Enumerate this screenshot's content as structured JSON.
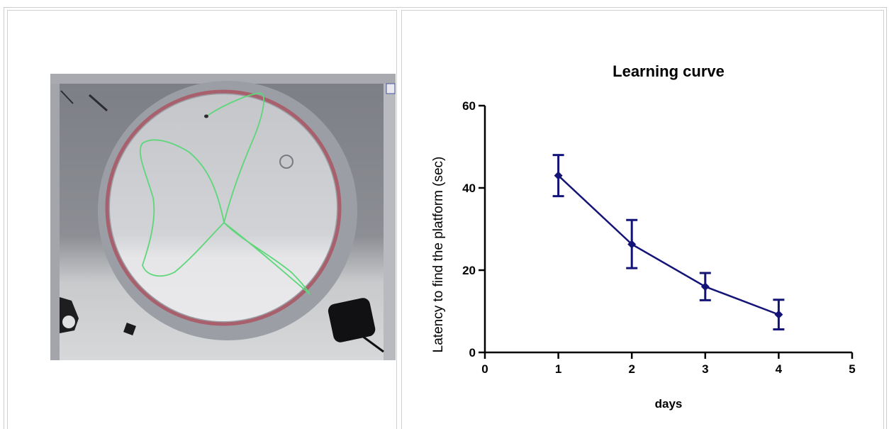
{
  "photo": {
    "description_icon": "water-maze-arena-photo",
    "path_color": "#5ed67a",
    "pool_rim_color": "#a8606c"
  },
  "chart_data": {
    "type": "line",
    "title": "Learning curve",
    "xlabel": "days",
    "ylabel": "Latency to find the platform (sec)",
    "xlim": [
      0,
      5
    ],
    "ylim": [
      0,
      60
    ],
    "x_ticks": [
      "0",
      "1",
      "2",
      "3",
      "4",
      "5"
    ],
    "y_ticks": [
      "0",
      "20",
      "40",
      "60"
    ],
    "grid": false,
    "color": "#141478",
    "series": [
      {
        "x": [
          1,
          2,
          3,
          4
        ],
        "values": [
          43,
          26.3,
          16,
          9.2
        ],
        "err_low": [
          38,
          20.5,
          12.7,
          5.6
        ],
        "err_high": [
          48,
          32.2,
          19.3,
          12.8
        ]
      }
    ]
  }
}
